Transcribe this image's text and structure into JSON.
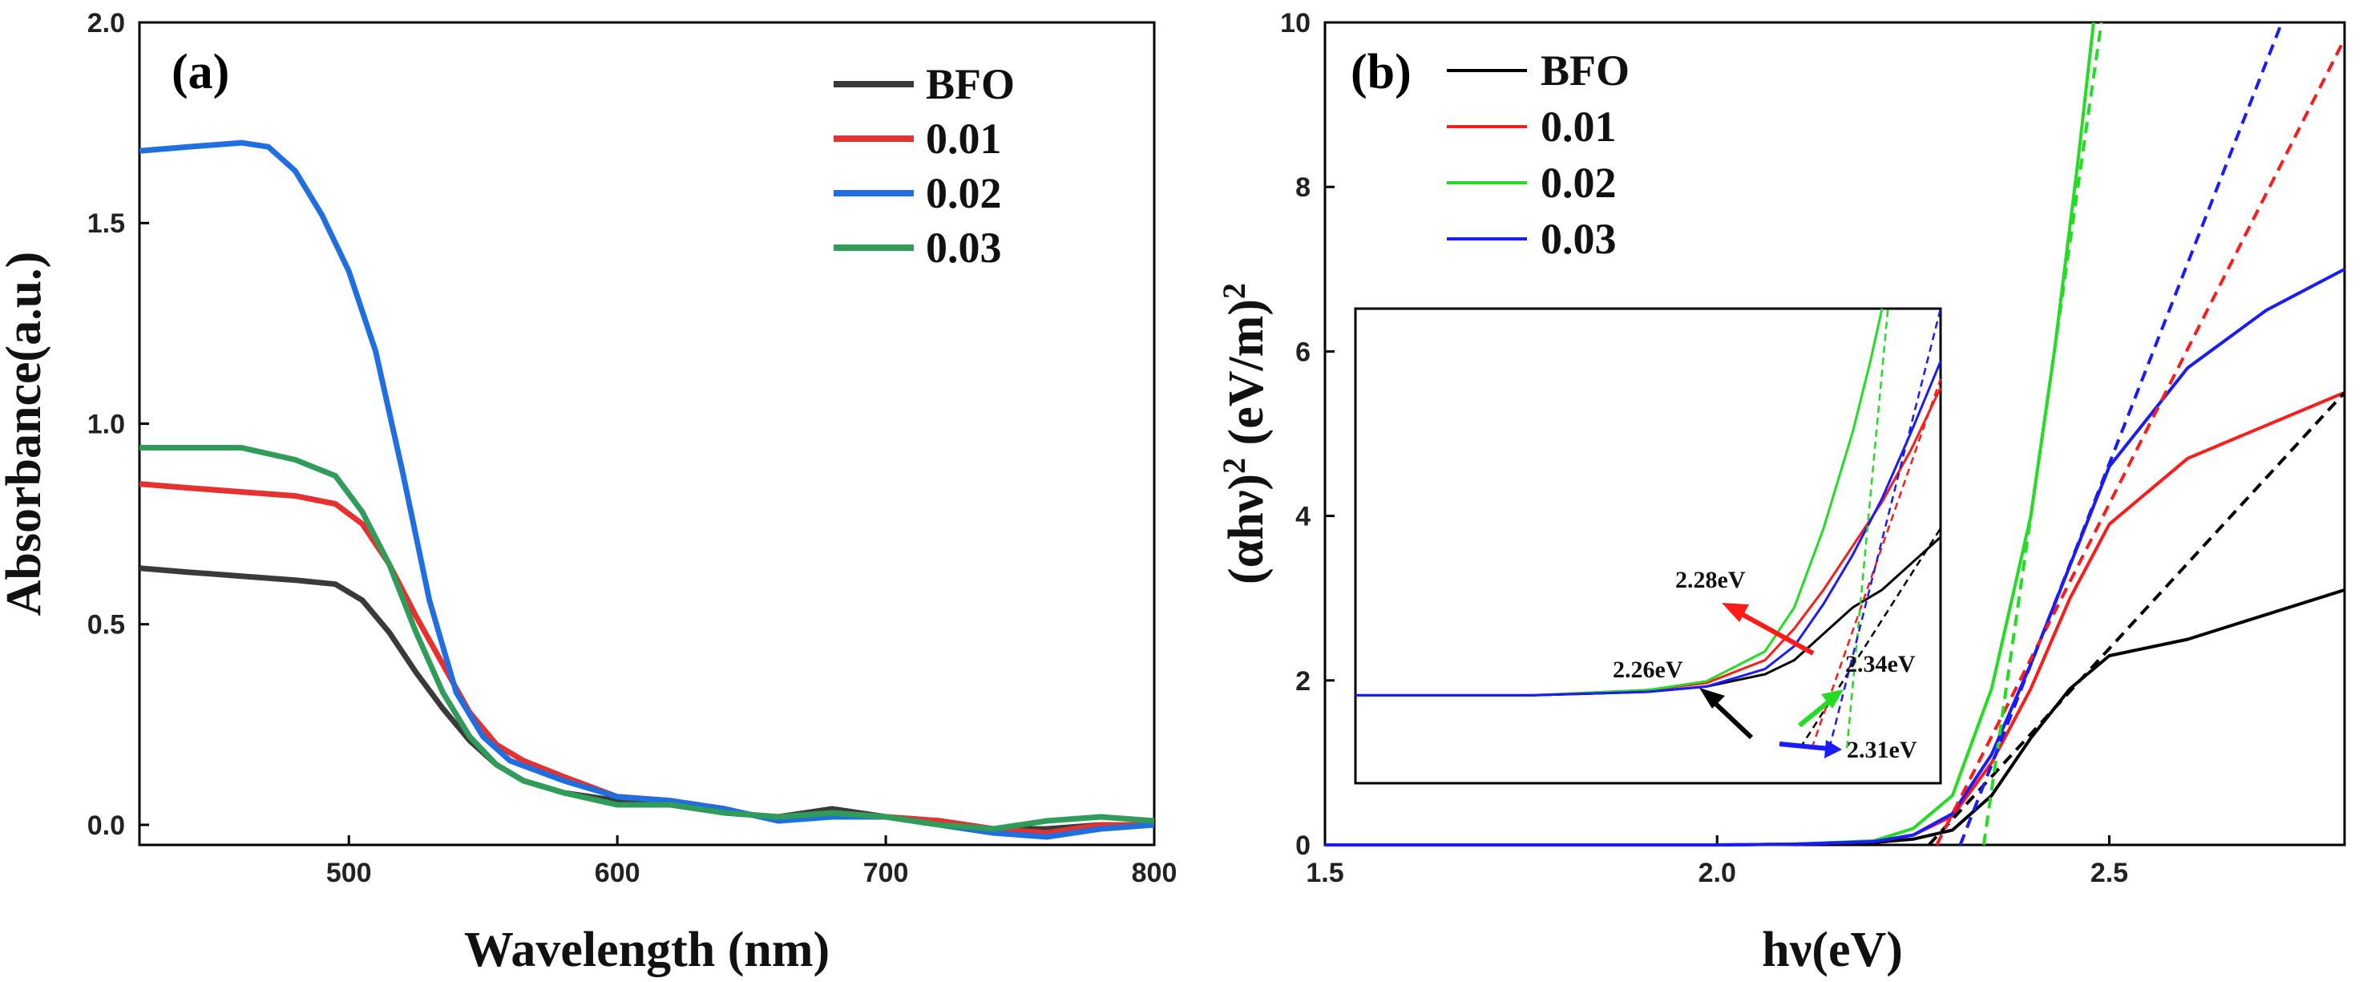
{
  "colors": {
    "bfo": "#3a3a3a",
    "c001": "#e8312f",
    "c002": "#1f6fe0",
    "c003": "#2f9c5a",
    "b_bfo": "#000000",
    "b_c001": "#ff1a1a",
    "b_c002": "#22dd22",
    "b_c003": "#1a1aff"
  },
  "chart_data": [
    {
      "type": "line",
      "panel_label": "(a)",
      "xlabel": "Wavelength (nm)",
      "ylabel": "Absorbance(a.u.)",
      "xlim": [
        422,
        800
      ],
      "ylim": [
        -0.05,
        2.0
      ],
      "xticks": [
        "500",
        "600",
        "700",
        "800"
      ],
      "yticks": [
        "0.0",
        "0.5",
        "1.0",
        "1.5",
        "2.0"
      ],
      "legend_position": "top-right",
      "series": [
        {
          "name": "BFO",
          "x": [
            422,
            440,
            460,
            480,
            495,
            505,
            515,
            525,
            535,
            545,
            555,
            565,
            580,
            600,
            620,
            640,
            660,
            680,
            700,
            720,
            740,
            760,
            780,
            800
          ],
          "y": [
            0.64,
            0.63,
            0.62,
            0.61,
            0.6,
            0.56,
            0.48,
            0.38,
            0.29,
            0.21,
            0.15,
            0.11,
            0.08,
            0.06,
            0.05,
            0.03,
            0.02,
            0.04,
            0.02,
            0.01,
            -0.01,
            -0.01,
            0.0,
            0.0
          ]
        },
        {
          "name": "0.01",
          "x": [
            422,
            440,
            460,
            480,
            495,
            505,
            515,
            525,
            535,
            545,
            555,
            565,
            580,
            600,
            620,
            640,
            660,
            680,
            700,
            720,
            740,
            760,
            780,
            800
          ],
          "y": [
            0.85,
            0.84,
            0.83,
            0.82,
            0.8,
            0.75,
            0.65,
            0.52,
            0.4,
            0.28,
            0.2,
            0.16,
            0.12,
            0.07,
            0.06,
            0.04,
            0.01,
            0.03,
            0.02,
            0.01,
            -0.01,
            -0.02,
            0.0,
            0.0
          ]
        },
        {
          "name": "0.02",
          "x": [
            422,
            440,
            460,
            470,
            480,
            490,
            500,
            510,
            520,
            530,
            540,
            550,
            560,
            580,
            600,
            620,
            640,
            660,
            680,
            700,
            720,
            740,
            760,
            780,
            800
          ],
          "y": [
            1.68,
            1.69,
            1.7,
            1.69,
            1.63,
            1.52,
            1.38,
            1.18,
            0.88,
            0.56,
            0.33,
            0.22,
            0.16,
            0.11,
            0.07,
            0.06,
            0.04,
            0.01,
            0.02,
            0.02,
            0.0,
            -0.02,
            -0.03,
            -0.01,
            0.0
          ]
        },
        {
          "name": "0.03",
          "x": [
            422,
            440,
            460,
            480,
            495,
            505,
            515,
            525,
            535,
            545,
            555,
            565,
            580,
            600,
            620,
            640,
            660,
            680,
            700,
            720,
            740,
            760,
            780,
            800
          ],
          "y": [
            0.94,
            0.94,
            0.94,
            0.91,
            0.87,
            0.78,
            0.65,
            0.48,
            0.33,
            0.22,
            0.15,
            0.11,
            0.08,
            0.05,
            0.05,
            0.03,
            0.02,
            0.03,
            0.02,
            0.0,
            -0.01,
            0.01,
            0.02,
            0.01
          ]
        }
      ]
    },
    {
      "type": "line",
      "panel_label": "(b)",
      "xlabel": "hν(eV)",
      "ylabel_main": "(αhν)",
      "ylabel_sup1": "2",
      "ylabel_mid": " (eV/m)",
      "ylabel_sup2": "2",
      "xlim": [
        1.5,
        2.8
      ],
      "ylim": [
        0,
        10
      ],
      "xticks": [
        "1.5",
        "2.0",
        "2.5"
      ],
      "yticks": [
        "0",
        "2",
        "4",
        "6",
        "8",
        "10"
      ],
      "legend_position": "top-left",
      "series": [
        {
          "name": "BFO",
          "x": [
            1.5,
            1.8,
            2.0,
            2.1,
            2.2,
            2.25,
            2.3,
            2.35,
            2.4,
            2.45,
            2.5,
            2.6,
            2.7,
            2.8
          ],
          "y": [
            0,
            0,
            0,
            0.01,
            0.03,
            0.07,
            0.18,
            0.6,
            1.3,
            1.9,
            2.3,
            2.5,
            2.8,
            3.1
          ]
        },
        {
          "name": "0.01",
          "x": [
            1.5,
            1.8,
            2.0,
            2.1,
            2.2,
            2.25,
            2.3,
            2.35,
            2.4,
            2.45,
            2.5,
            2.55,
            2.6,
            2.7,
            2.8
          ],
          "y": [
            0,
            0,
            0,
            0.01,
            0.04,
            0.12,
            0.35,
            1.0,
            1.9,
            3.0,
            3.9,
            4.3,
            4.7,
            5.1,
            5.5
          ]
        },
        {
          "name": "0.02",
          "x": [
            1.5,
            1.8,
            2.0,
            2.1,
            2.2,
            2.25,
            2.3,
            2.35,
            2.4,
            2.43,
            2.46,
            2.48
          ],
          "y": [
            0,
            0,
            0,
            0.01,
            0.05,
            0.2,
            0.6,
            1.9,
            4.0,
            6.0,
            8.3,
            10
          ]
        },
        {
          "name": "0.03",
          "x": [
            1.5,
            1.8,
            2.0,
            2.1,
            2.2,
            2.25,
            2.3,
            2.35,
            2.4,
            2.45,
            2.5,
            2.55,
            2.6,
            2.7,
            2.8
          ],
          "y": [
            0,
            0,
            0,
            0.01,
            0.04,
            0.12,
            0.38,
            1.1,
            2.2,
            3.4,
            4.6,
            5.2,
            5.8,
            6.5,
            7.0
          ]
        }
      ],
      "tangents": [
        {
          "name": "BFO",
          "x": [
            2.27,
            2.8
          ],
          "y": [
            0,
            5.5
          ]
        },
        {
          "name": "0.01",
          "x": [
            2.28,
            2.8
          ],
          "y": [
            0,
            9.8
          ]
        },
        {
          "name": "0.02",
          "x": [
            2.34,
            2.49
          ],
          "y": [
            0,
            10
          ]
        },
        {
          "name": "0.03",
          "x": [
            2.31,
            2.72
          ],
          "y": [
            0,
            10
          ]
        }
      ],
      "inset": {
        "annotations": [
          "2.28eV",
          "2.26eV",
          "2.34eV",
          "2.31eV"
        ]
      }
    }
  ]
}
